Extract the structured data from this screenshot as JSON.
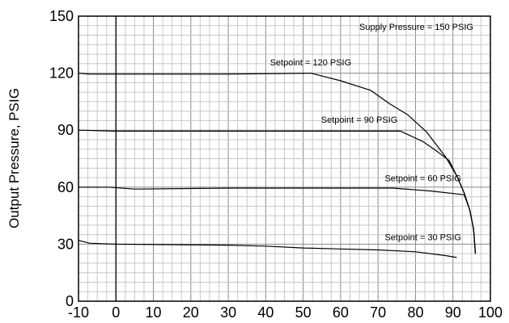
{
  "chart_data": {
    "type": "line",
    "title": "",
    "xlabel": "",
    "ylabel": "Output Pressure, PSIG",
    "xlim": [
      -10,
      100
    ],
    "ylim": [
      0,
      150
    ],
    "x_ticks": [
      "-10",
      "0",
      "10",
      "20",
      "30",
      "40",
      "50",
      "60",
      "70",
      "80",
      "90",
      "100"
    ],
    "y_ticks": [
      "0",
      "30",
      "60",
      "90",
      "120",
      "150"
    ],
    "grid": true,
    "note": "Supply Pressure = 150 PSIG",
    "series": [
      {
        "name": "Setpoint = 120 PSIG",
        "label_at": [
          52,
          124
        ],
        "points": [
          [
            -10,
            120
          ],
          [
            -7,
            119.5
          ],
          [
            0,
            119.5
          ],
          [
            30,
            119.5
          ],
          [
            52,
            120
          ],
          [
            60,
            116
          ],
          [
            68,
            111
          ],
          [
            73,
            104
          ],
          [
            78,
            98
          ],
          [
            83,
            89
          ],
          [
            88,
            76
          ],
          [
            91,
            66
          ],
          [
            93,
            57
          ],
          [
            94.5,
            48
          ],
          [
            95.5,
            38
          ],
          [
            96,
            25
          ]
        ]
      },
      {
        "name": "Setpoint = 90 PSIG",
        "label_at": [
          65,
          94
        ],
        "points": [
          [
            -10,
            90
          ],
          [
            0,
            89.5
          ],
          [
            30,
            89.5
          ],
          [
            60,
            89.5
          ],
          [
            76,
            89.5
          ],
          [
            82,
            84
          ],
          [
            86,
            78.5
          ],
          [
            89,
            74
          ],
          [
            91,
            66
          ],
          [
            93,
            57
          ],
          [
            94.5,
            48
          ],
          [
            95.5,
            38
          ],
          [
            96,
            25
          ]
        ]
      },
      {
        "name": "Setpoint = 60 PSIG",
        "label_at": [
          82,
          63
        ],
        "points": [
          [
            -10,
            60
          ],
          [
            -2,
            60
          ],
          [
            5,
            59
          ],
          [
            30,
            59.5
          ],
          [
            60,
            59.5
          ],
          [
            74,
            59.5
          ],
          [
            84,
            58
          ],
          [
            93,
            56
          ],
          [
            94.5,
            48
          ],
          [
            95.5,
            38
          ],
          [
            96,
            25
          ]
        ]
      },
      {
        "name": "Setpoint = 30 PSIG",
        "label_at": [
          82,
          32
        ],
        "points": [
          [
            -10,
            32
          ],
          [
            -7,
            30.5
          ],
          [
            0,
            30
          ],
          [
            30,
            29.5
          ],
          [
            40,
            29
          ],
          [
            50,
            28
          ],
          [
            60,
            27.5
          ],
          [
            70,
            27
          ],
          [
            80,
            26
          ],
          [
            88,
            24
          ],
          [
            91,
            23
          ]
        ]
      }
    ]
  }
}
